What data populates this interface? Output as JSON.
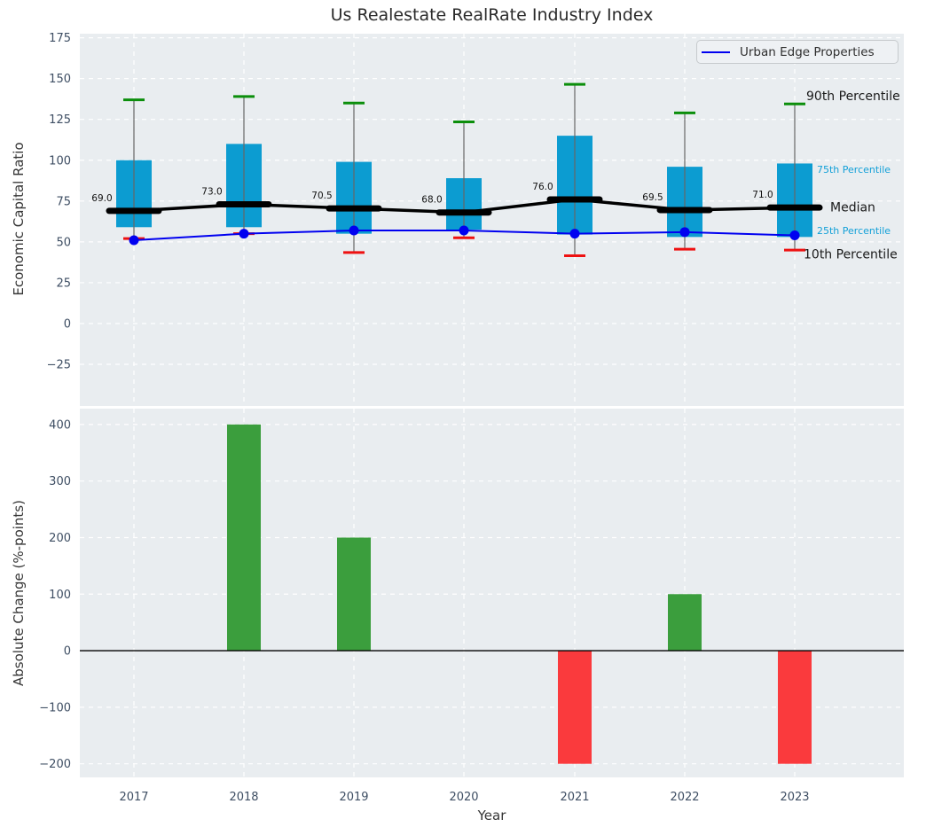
{
  "title": "Us Realestate RealRate Industry Index",
  "legend": {
    "label": "Urban Edge Properties"
  },
  "colors": {
    "figure_bg": "#ffffff",
    "plot_bg": "#e9edf0",
    "grid": "#ffffff",
    "box_fill": "#0c9cd1",
    "whisker": "#666666",
    "cap_90th": "#0b8e0b",
    "cap_10th": "#ee1111",
    "median_line": "#000000",
    "company_line": "#0000f0",
    "bar_positive": "#3b9e3d",
    "bar_negative": "#fa3a3d",
    "zero_line": "#000000",
    "tick_text": "#3e4e63",
    "axis_label_text": "#363636",
    "title_text": "#2b2b2b",
    "annotation_black": "#1a1a1a",
    "annotation_cyan": "#14a1d8",
    "median_value_text": "#111111",
    "legend_bg": "#eef1f4",
    "legend_border": "#c6cacd",
    "legend_text": "#2f2f2f"
  },
  "chart_data": [
    {
      "type": "boxplot",
      "title": "Us Realestate RealRate Industry Index",
      "ylabel": "Economic Capital Ratio",
      "categories": [
        "2017",
        "2018",
        "2019",
        "2020",
        "2021",
        "2022",
        "2023"
      ],
      "yticks": [
        175,
        150,
        125,
        100,
        75,
        50,
        25,
        0,
        -25
      ],
      "ytick_labels": [
        "175",
        "150",
        "125",
        "100",
        "75",
        "50",
        "25",
        "0",
        "−25"
      ],
      "ylim": [
        -50.5,
        177.5
      ],
      "grid": true,
      "legend_position": "upper right",
      "series": [
        {
          "name": "90th Percentile",
          "values": [
            137,
            139,
            135,
            123.5,
            146.5,
            129,
            134.5
          ]
        },
        {
          "name": "75th Percentile",
          "values": [
            100,
            110,
            99,
            89,
            115,
            96,
            98
          ]
        },
        {
          "name": "Median",
          "values": [
            69.0,
            73.0,
            70.5,
            68.0,
            76.0,
            69.5,
            71.0
          ]
        },
        {
          "name": "25th Percentile",
          "values": [
            59,
            59,
            55,
            57.5,
            54.5,
            53,
            53
          ]
        },
        {
          "name": "10th Percentile",
          "values": [
            52,
            55,
            43.5,
            52.5,
            41.5,
            45.5,
            45
          ]
        },
        {
          "name": "Urban Edge Properties",
          "values": [
            51,
            55,
            57,
            57,
            55,
            56,
            54
          ]
        }
      ],
      "median_labels": [
        "69.0",
        "73.0",
        "70.5",
        "68.0",
        "76.0",
        "69.5",
        "71.0"
      ],
      "annotations": [
        {
          "text": "90th Percentile",
          "value": 139.5,
          "x": 909,
          "size": "large",
          "color": "black"
        },
        {
          "text": "75th Percentile",
          "value": 95,
          "x": 921,
          "size": "small",
          "color": "cyan"
        },
        {
          "text": "Median",
          "value": 71.5,
          "x": 936,
          "size": "large",
          "color": "black"
        },
        {
          "text": "25th Percentile",
          "value": 57.5,
          "x": 921,
          "size": "small",
          "color": "cyan"
        },
        {
          "text": "10th Percentile",
          "value": 42.5,
          "x": 906,
          "size": "large",
          "color": "black"
        }
      ]
    },
    {
      "type": "bar",
      "xlabel": "Year",
      "ylabel": "Absolute Change (%-points)",
      "categories": [
        "2017",
        "2018",
        "2019",
        "2020",
        "2021",
        "2022",
        "2023"
      ],
      "values": [
        null,
        400,
        200,
        0,
        -200,
        100,
        -200
      ],
      "yticks": [
        400,
        300,
        200,
        100,
        0,
        -100,
        -200
      ],
      "ytick_labels": [
        "400",
        "300",
        "200",
        "100",
        "0",
        "−100",
        "−200"
      ],
      "ylim": [
        -224,
        428
      ],
      "grid": true
    }
  ]
}
